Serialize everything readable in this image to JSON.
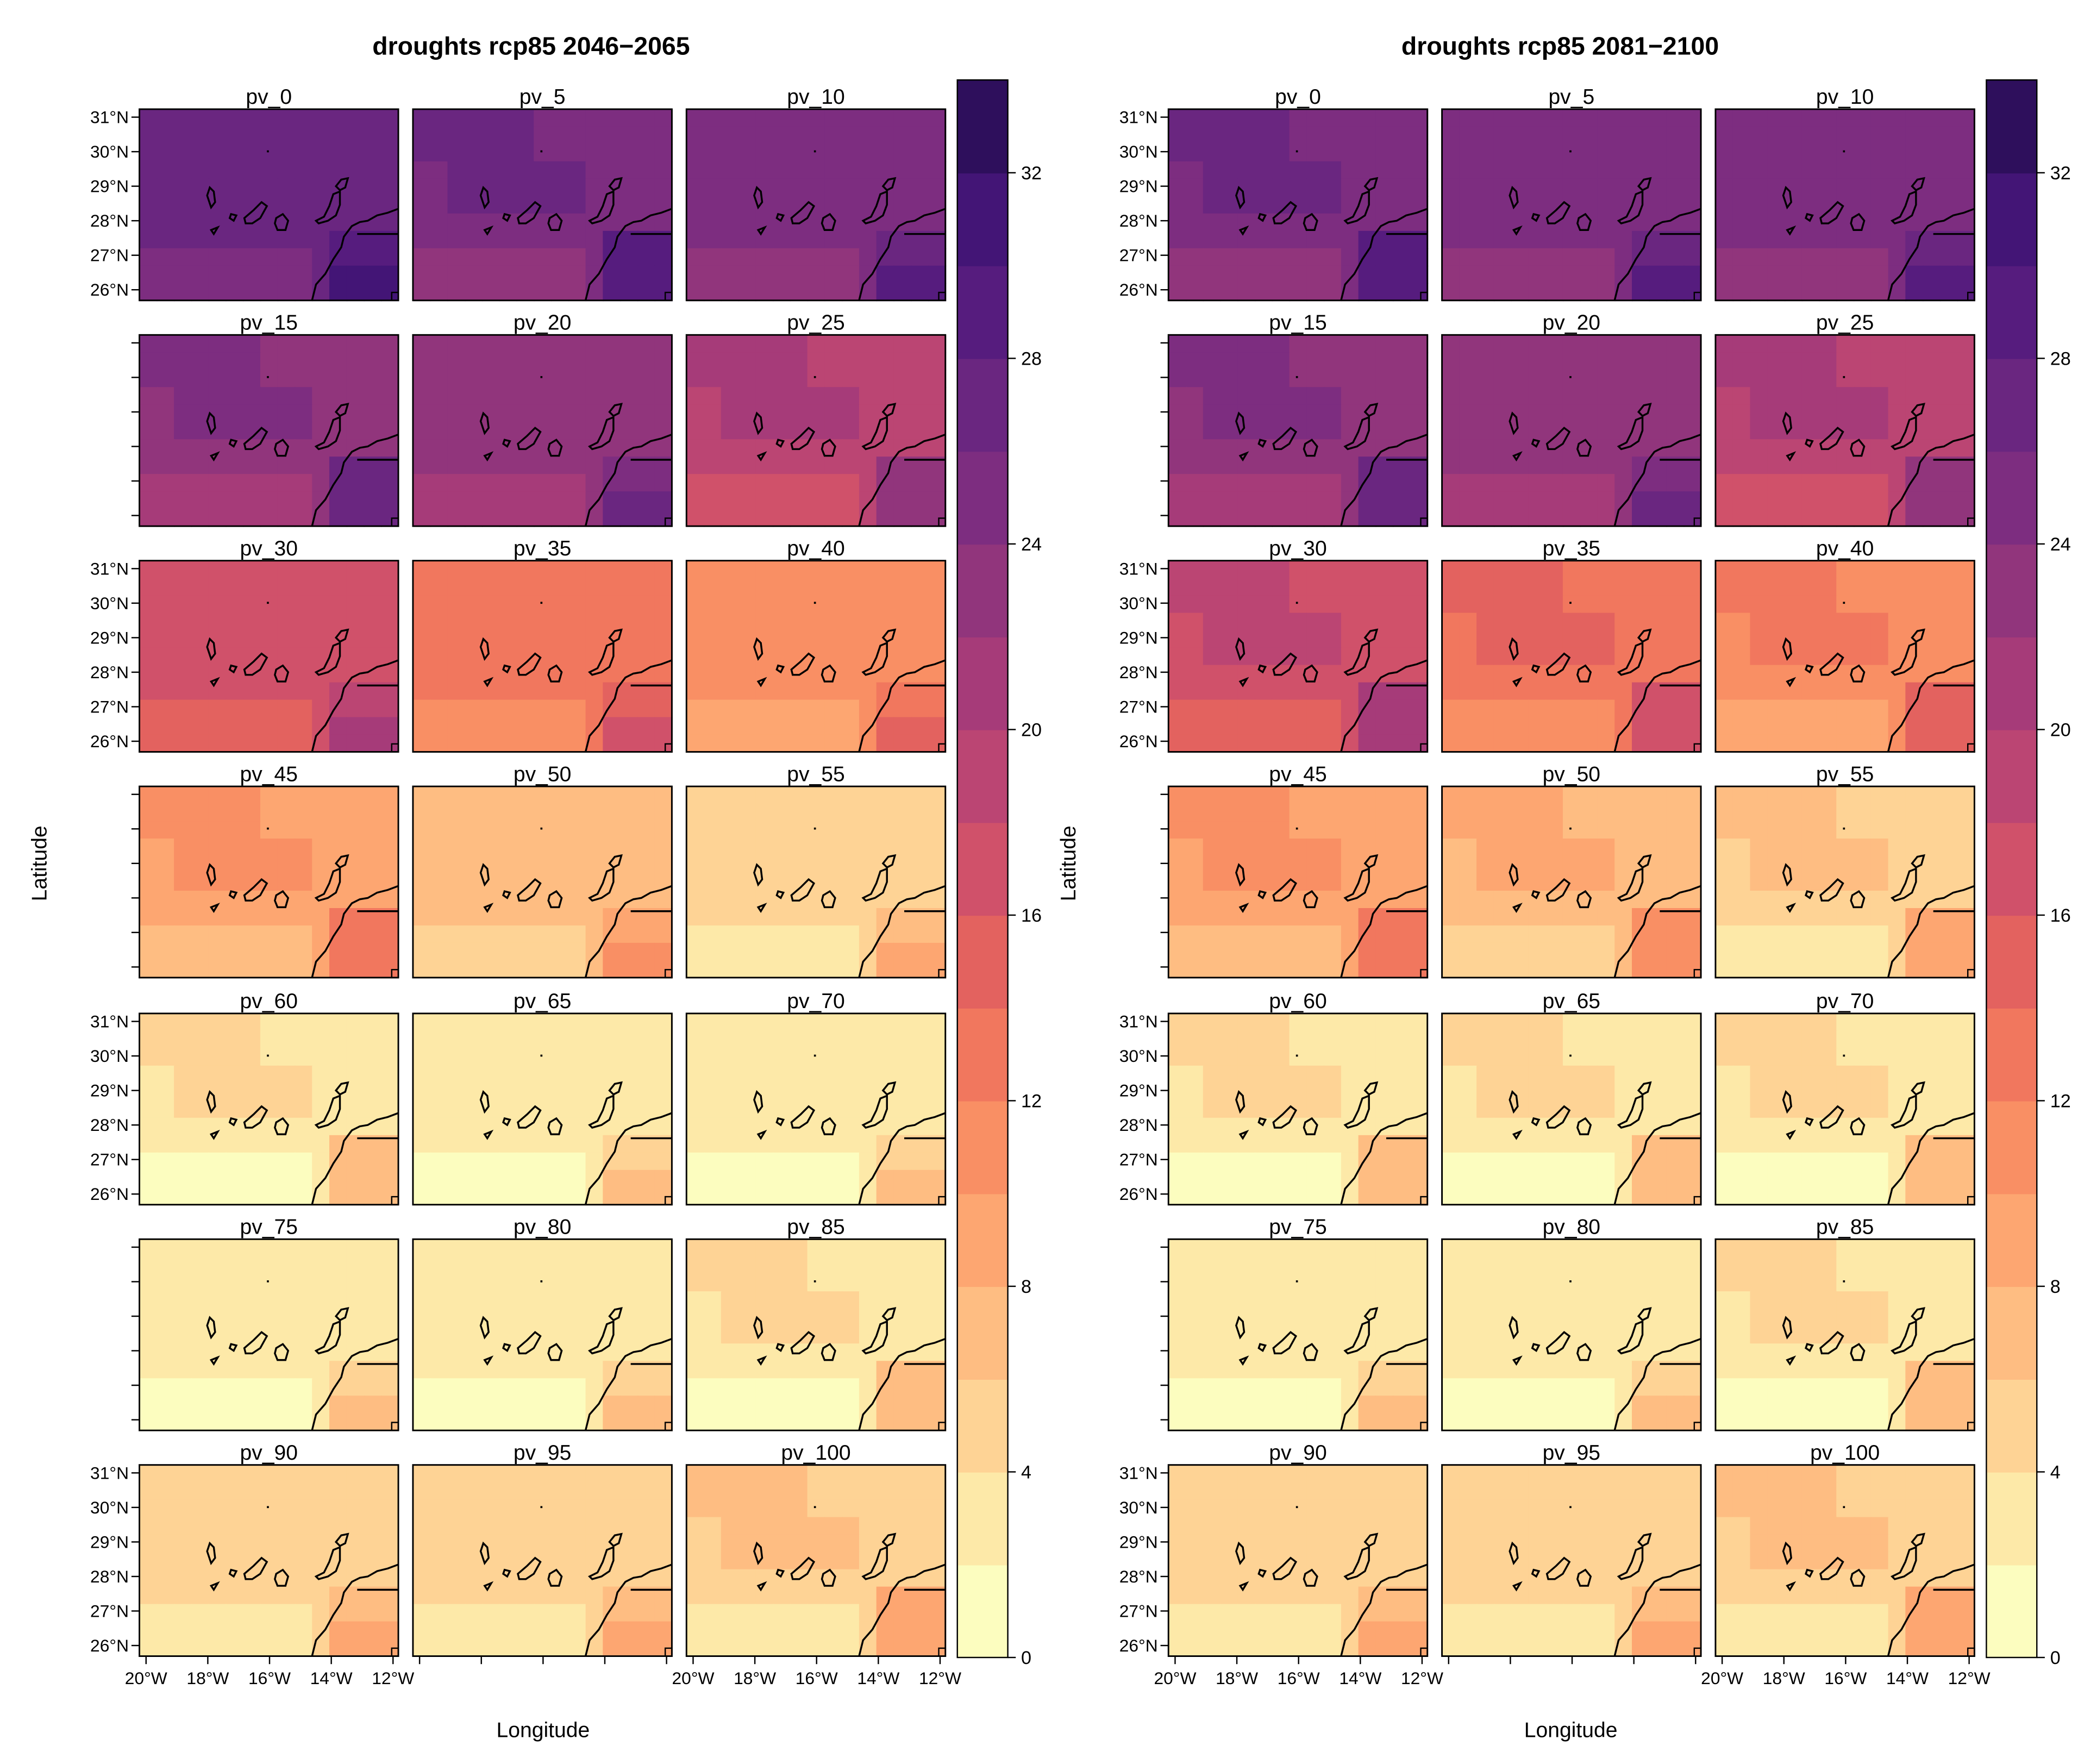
{
  "chart_data": [
    {
      "type": "heatmap",
      "title": "droughts rcp85 2046−2065",
      "xlabel": "Longitude",
      "ylabel": "Latitude",
      "xlim": [
        -20.5,
        -11.8
      ],
      "ylim": [
        25.8,
        31.2
      ],
      "x_ticks": [
        "20°W",
        "18°W",
        "16°W",
        "14°W",
        "12°W"
      ],
      "y_ticks": [
        "26°N",
        "27°N",
        "28°N",
        "29°N",
        "30°N",
        "31°N"
      ],
      "panels": [
        "pv_0",
        "pv_5",
        "pv_10",
        "pv_15",
        "pv_20",
        "pv_25",
        "pv_30",
        "pv_35",
        "pv_40",
        "pv_45",
        "pv_50",
        "pv_55",
        "pv_60",
        "pv_65",
        "pv_70",
        "pv_75",
        "pv_80",
        "pv_85",
        "pv_90",
        "pv_95",
        "pv_100"
      ],
      "panel_mean_values": [
        26,
        25,
        24,
        23,
        22,
        19,
        16,
        12,
        10,
        9,
        6,
        4,
        3,
        2,
        2,
        2,
        2,
        3,
        4,
        4,
        5
      ],
      "colorbar": {
        "min": 0,
        "max": 34,
        "step": 2,
        "ticks": [
          "0",
          "4",
          "8",
          "12",
          "16",
          "20",
          "24",
          "28",
          "32"
        ]
      }
    },
    {
      "type": "heatmap",
      "title": "droughts rcp85 2081−2100",
      "xlabel": "Longitude",
      "ylabel": "Latitude",
      "xlim": [
        -20.5,
        -11.8
      ],
      "ylim": [
        25.8,
        31.2
      ],
      "x_ticks": [
        "20°W",
        "18°W",
        "16°W",
        "14°W",
        "12°W"
      ],
      "y_ticks": [
        "26°N",
        "27°N",
        "28°N",
        "29°N",
        "30°N",
        "31°N"
      ],
      "panels": [
        "pv_0",
        "pv_5",
        "pv_10",
        "pv_15",
        "pv_20",
        "pv_25",
        "pv_30",
        "pv_35",
        "pv_40",
        "pv_45",
        "pv_50",
        "pv_55",
        "pv_60",
        "pv_65",
        "pv_70",
        "pv_75",
        "pv_80",
        "pv_85",
        "pv_90",
        "pv_95",
        "pv_100"
      ],
      "panel_mean_values": [
        25,
        24,
        24,
        23,
        22,
        19,
        17,
        13,
        11,
        9,
        7,
        5,
        3,
        3,
        3,
        2,
        2,
        3,
        4,
        4,
        5
      ],
      "colorbar": {
        "min": 0,
        "max": 34,
        "step": 2,
        "ticks": [
          "0",
          "4",
          "8",
          "12",
          "16",
          "20",
          "24",
          "28",
          "32"
        ]
      }
    }
  ],
  "colors": {
    "palette": [
      "#fcfdbf",
      "#fde9a8",
      "#fed395",
      "#febd82",
      "#fda671",
      "#f98f64",
      "#f1775e",
      "#e3625f",
      "#d0516a",
      "#bb4573",
      "#a63b79",
      "#91357c",
      "#7d2d80",
      "#6a2680",
      "#561c7e",
      "#431576",
      "#2e0f5c"
    ],
    "coast": "#000000"
  }
}
